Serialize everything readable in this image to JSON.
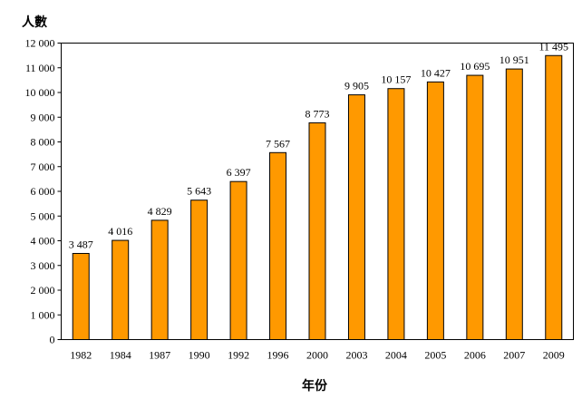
{
  "chart_data": {
    "type": "bar",
    "title": "",
    "xlabel": "年份",
    "ylabel": "人數",
    "categories": [
      "1982",
      "1984",
      "1987",
      "1990",
      "1992",
      "1996",
      "2000",
      "2003",
      "2004",
      "2005",
      "2006",
      "2007",
      "2009"
    ],
    "values": [
      3487,
      4016,
      4829,
      5643,
      6397,
      7567,
      8773,
      9905,
      10157,
      10427,
      10695,
      10951,
      11495
    ],
    "value_labels": [
      "3 487",
      "4 016",
      "4 829",
      "5 643",
      "6 397",
      "7 567",
      "8 773",
      "9 905",
      "10 157",
      "10 427",
      "10 695",
      "10 951",
      "11 495"
    ],
    "ylim": [
      0,
      12000
    ],
    "yticks": [
      0,
      1000,
      2000,
      3000,
      4000,
      5000,
      6000,
      7000,
      8000,
      9000,
      10000,
      11000,
      12000
    ],
    "ytick_labels": [
      "0",
      "1 000",
      "2 000",
      "3 000",
      "4 000",
      "5 000",
      "6 000",
      "7 000",
      "8 000",
      "9 000",
      "10 000",
      "11 000",
      "12 000"
    ],
    "grid": false,
    "bar_color": "#FF9900",
    "bar_edge_color": "#000000"
  }
}
